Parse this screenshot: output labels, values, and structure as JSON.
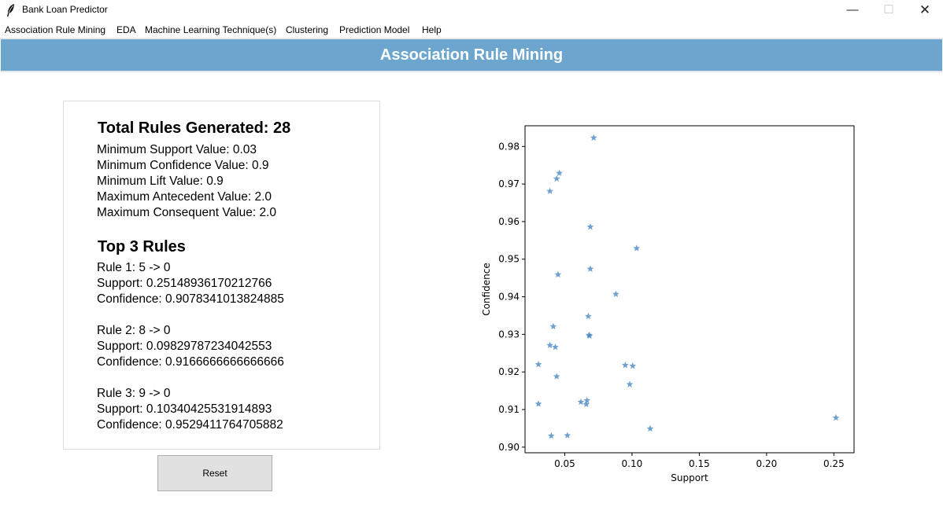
{
  "window": {
    "title": "Bank Loan Predictor",
    "controls": {
      "minimize": "—",
      "maximize": "☐",
      "close": "✕"
    },
    "icon": "feather-icon"
  },
  "menu": [
    "Association Rule Mining",
    "EDA",
    "Machine Learning Technique(s)",
    "Clustering",
    "Prediction Model",
    "Help"
  ],
  "header": {
    "title": "Association Rule Mining",
    "color": "#6ca6cf"
  },
  "summary": {
    "total_rules": "Total Rules Generated: 28",
    "min_support": "Minimum Support Value: 0.03",
    "min_confidence": "Minimum Confidence Value: 0.9",
    "min_lift": "Minimum Lift Value: 0.9",
    "max_antecedent": "Maximum Antecedent Value: 2.0",
    "max_consequent": "Maximum Consequent Value: 2.0"
  },
  "top_rules": {
    "heading": "Top 3 Rules",
    "rules": [
      {
        "rule": "Rule 1: 5 -> 0",
        "support": "Support: 0.25148936170212766",
        "confidence": "Confidence: 0.9078341013824885"
      },
      {
        "rule": "Rule 2: 8 -> 0",
        "support": "Support: 0.09829787234042553",
        "confidence": "Confidence: 0.9166666666666666"
      },
      {
        "rule": "Rule 3: 9 -> 0",
        "support": "Support: 0.10340425531914893",
        "confidence": "Confidence: 0.9529411764705882"
      }
    ]
  },
  "reset_label": "Reset",
  "chart_data": {
    "type": "scatter",
    "xlabel": "Support",
    "ylabel": "Confidence",
    "xlim": [
      0.0205,
      0.265
    ],
    "ylim": [
      0.8985,
      0.9855
    ],
    "xticks": [
      0.05,
      0.1,
      0.15,
      0.2,
      0.25
    ],
    "xtick_labels": [
      "0.05",
      "0.10",
      "0.15",
      "0.20",
      "0.25"
    ],
    "yticks": [
      0.9,
      0.91,
      0.92,
      0.93,
      0.94,
      0.95,
      0.96,
      0.97,
      0.98
    ],
    "ytick_labels": [
      "0.90",
      "0.91",
      "0.92",
      "0.93",
      "0.94",
      "0.95",
      "0.96",
      "0.97",
      "0.98"
    ],
    "marker": "star",
    "color": "#4a8ac0",
    "points": [
      {
        "x": 0.0715,
        "y": 0.9823
      },
      {
        "x": 0.046,
        "y": 0.9729
      },
      {
        "x": 0.044,
        "y": 0.9714
      },
      {
        "x": 0.039,
        "y": 0.9681
      },
      {
        "x": 0.069,
        "y": 0.9586
      },
      {
        "x": 0.1034,
        "y": 0.9529
      },
      {
        "x": 0.069,
        "y": 0.9474
      },
      {
        "x": 0.045,
        "y": 0.9459
      },
      {
        "x": 0.088,
        "y": 0.9407
      },
      {
        "x": 0.0675,
        "y": 0.9348
      },
      {
        "x": 0.0415,
        "y": 0.9321
      },
      {
        "x": 0.068,
        "y": 0.9298
      },
      {
        "x": 0.0685,
        "y": 0.9296
      },
      {
        "x": 0.039,
        "y": 0.9271
      },
      {
        "x": 0.043,
        "y": 0.9266
      },
      {
        "x": 0.0305,
        "y": 0.922
      },
      {
        "x": 0.095,
        "y": 0.9218
      },
      {
        "x": 0.1005,
        "y": 0.9216
      },
      {
        "x": 0.044,
        "y": 0.9188
      },
      {
        "x": 0.0983,
        "y": 0.9167
      },
      {
        "x": 0.062,
        "y": 0.912
      },
      {
        "x": 0.0665,
        "y": 0.9124
      },
      {
        "x": 0.066,
        "y": 0.9114
      },
      {
        "x": 0.0305,
        "y": 0.9115
      },
      {
        "x": 0.2515,
        "y": 0.9078
      },
      {
        "x": 0.1135,
        "y": 0.9049
      },
      {
        "x": 0.04,
        "y": 0.903
      },
      {
        "x": 0.052,
        "y": 0.9031
      }
    ]
  }
}
